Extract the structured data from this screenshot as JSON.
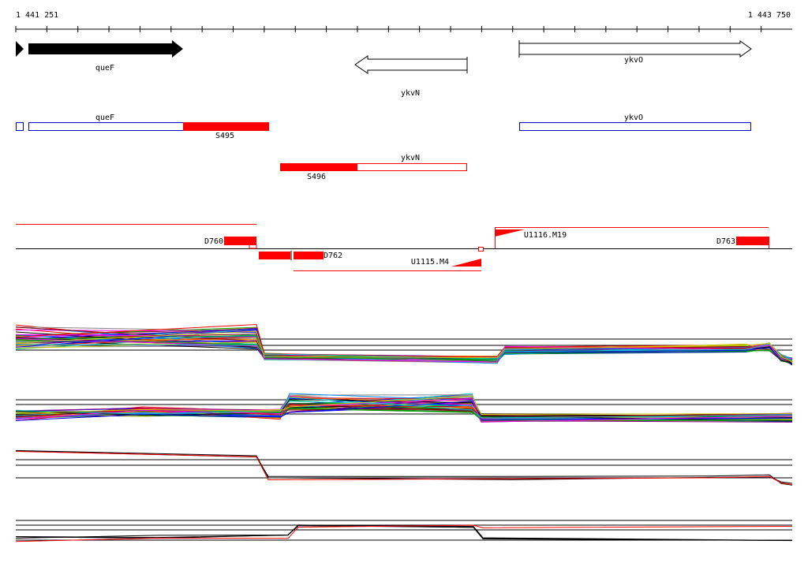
{
  "ruler": {
    "start": "1 441 251",
    "end": "1 443 750"
  },
  "genes": [
    {
      "label": "queF"
    },
    {
      "label": "ykvN"
    },
    {
      "label": "ykvO"
    }
  ],
  "transcripts": [
    {
      "label": "queF"
    },
    {
      "label": "S495"
    },
    {
      "label": "ykvO"
    },
    {
      "label": "ykvN"
    },
    {
      "label": "S496"
    }
  ],
  "segments": [
    {
      "label": "D760"
    },
    {
      "label": "D762"
    },
    {
      "label": "U1115.M4"
    },
    {
      "label": "U1116.M19"
    },
    {
      "label": "D763"
    }
  ]
}
